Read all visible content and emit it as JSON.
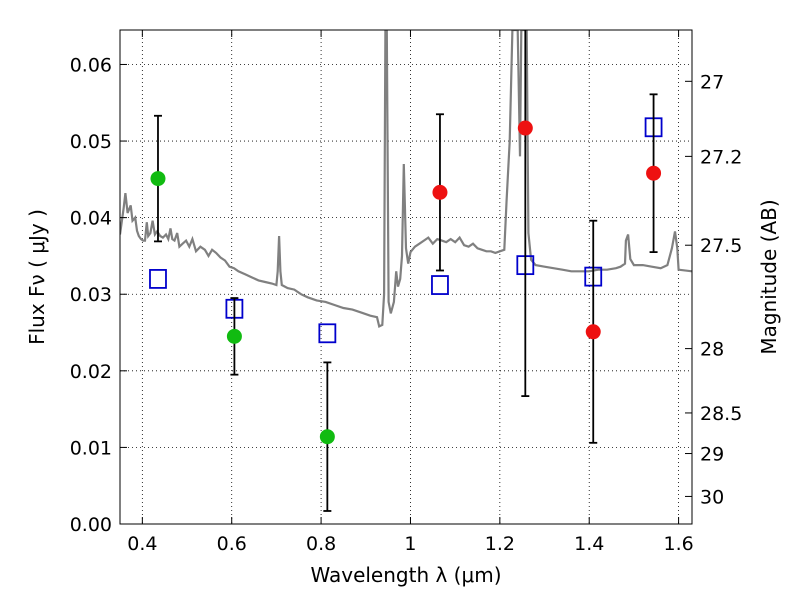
{
  "chart_data": {
    "type": "scatter",
    "xlabel": "Wavelength  λ (μm)",
    "ylabel": "Flux  Fν  ( μJy )",
    "ylabel_right": "Magnitude (AB)",
    "xlim": [
      0.35,
      1.63
    ],
    "ylim": [
      0.0,
      0.0645
    ],
    "grid": true,
    "x_ticks": [
      0.4,
      0.6,
      0.8,
      1.0,
      1.2,
      1.4,
      1.6
    ],
    "x_tick_labels": [
      "0.4",
      "0.6",
      "0.8",
      "1",
      "1.2",
      "1.4",
      "1.6"
    ],
    "y_ticks": [
      0.0,
      0.01,
      0.02,
      0.03,
      0.04,
      0.05,
      0.06
    ],
    "y_tick_labels": [
      "0.00",
      "0.01",
      "0.02",
      "0.03",
      "0.04",
      "0.05",
      "0.06"
    ],
    "right_ticks": [
      {
        "label": "27",
        "flux": 0.0578
      },
      {
        "label": "27.2",
        "flux": 0.048
      },
      {
        "label": "27.5",
        "flux": 0.0364
      },
      {
        "label": "28",
        "flux": 0.0229
      },
      {
        "label": "28.5",
        "flux": 0.0145
      },
      {
        "label": "29",
        "flux": 0.0092
      },
      {
        "label": "30",
        "flux": 0.0036
      }
    ],
    "colors": {
      "green": "#11bb11",
      "red": "#ee1111",
      "model_squares": "#0000cc",
      "spectrum": "#808080",
      "errorbar": "#000000"
    },
    "series": [
      {
        "marker": "circle",
        "color": "green",
        "points": [
          {
            "x": 0.435,
            "y": 0.0451,
            "err": 0.0082
          },
          {
            "x": 0.606,
            "y": 0.0245,
            "err": 0.005
          },
          {
            "x": 0.814,
            "y": 0.0114,
            "err": 0.0097
          }
        ]
      },
      {
        "marker": "circle",
        "color": "red",
        "points": [
          {
            "x": 1.066,
            "y": 0.0433,
            "err": 0.0102
          },
          {
            "x": 1.257,
            "y": 0.0517,
            "err": 0.035
          },
          {
            "x": 1.409,
            "y": 0.0251,
            "err": 0.0145
          },
          {
            "x": 1.544,
            "y": 0.0458,
            "err": 0.0103
          }
        ]
      },
      {
        "marker": "open-square",
        "color": "model_squares",
        "points": [
          {
            "x": 0.435,
            "y": 0.032
          },
          {
            "x": 0.606,
            "y": 0.0281
          },
          {
            "x": 0.814,
            "y": 0.0249
          },
          {
            "x": 1.066,
            "y": 0.0312
          },
          {
            "x": 1.257,
            "y": 0.0338
          },
          {
            "x": 1.409,
            "y": 0.0323
          },
          {
            "x": 1.544,
            "y": 0.0518
          }
        ]
      }
    ],
    "spectrum": [
      [
        0.35,
        0.0378
      ],
      [
        0.358,
        0.0412
      ],
      [
        0.362,
        0.0432
      ],
      [
        0.367,
        0.0406
      ],
      [
        0.374,
        0.0416
      ],
      [
        0.378,
        0.0396
      ],
      [
        0.384,
        0.04
      ],
      [
        0.388,
        0.0383
      ],
      [
        0.392,
        0.0376
      ],
      [
        0.397,
        0.0372
      ],
      [
        0.402,
        0.037
      ],
      [
        0.406,
        0.037
      ],
      [
        0.41,
        0.0394
      ],
      [
        0.413,
        0.0376
      ],
      [
        0.418,
        0.038
      ],
      [
        0.423,
        0.0396
      ],
      [
        0.428,
        0.0378
      ],
      [
        0.433,
        0.0382
      ],
      [
        0.44,
        0.0376
      ],
      [
        0.446,
        0.0374
      ],
      [
        0.453,
        0.0378
      ],
      [
        0.458,
        0.0372
      ],
      [
        0.463,
        0.0386
      ],
      [
        0.467,
        0.0372
      ],
      [
        0.472,
        0.037
      ],
      [
        0.478,
        0.038
      ],
      [
        0.483,
        0.0362
      ],
      [
        0.49,
        0.0366
      ],
      [
        0.498,
        0.037
      ],
      [
        0.505,
        0.0362
      ],
      [
        0.512,
        0.0372
      ],
      [
        0.52,
        0.0356
      ],
      [
        0.53,
        0.0362
      ],
      [
        0.54,
        0.0358
      ],
      [
        0.548,
        0.035
      ],
      [
        0.556,
        0.0358
      ],
      [
        0.565,
        0.0354
      ],
      [
        0.575,
        0.0348
      ],
      [
        0.585,
        0.0344
      ],
      [
        0.595,
        0.0336
      ],
      [
        0.605,
        0.0334
      ],
      [
        0.615,
        0.033
      ],
      [
        0.63,
        0.0326
      ],
      [
        0.645,
        0.0322
      ],
      [
        0.66,
        0.0318
      ],
      [
        0.675,
        0.0316
      ],
      [
        0.69,
        0.0314
      ],
      [
        0.7,
        0.0312
      ],
      [
        0.703,
        0.033
      ],
      [
        0.706,
        0.0376
      ],
      [
        0.709,
        0.033
      ],
      [
        0.712,
        0.0312
      ],
      [
        0.725,
        0.0308
      ],
      [
        0.74,
        0.0306
      ],
      [
        0.755,
        0.03
      ],
      [
        0.77,
        0.0296
      ],
      [
        0.79,
        0.0292
      ],
      [
        0.81,
        0.029
      ],
      [
        0.83,
        0.0286
      ],
      [
        0.85,
        0.0282
      ],
      [
        0.87,
        0.028
      ],
      [
        0.89,
        0.0276
      ],
      [
        0.91,
        0.0272
      ],
      [
        0.925,
        0.027
      ],
      [
        0.93,
        0.0258
      ],
      [
        0.937,
        0.026
      ],
      [
        0.941,
        0.03
      ],
      [
        0.944,
        0.0645
      ],
      [
        0.947,
        0.0645
      ],
      [
        0.951,
        0.029
      ],
      [
        0.956,
        0.0275
      ],
      [
        0.963,
        0.029
      ],
      [
        0.968,
        0.033
      ],
      [
        0.972,
        0.031
      ],
      [
        0.977,
        0.032
      ],
      [
        0.981,
        0.035
      ],
      [
        0.985,
        0.047
      ],
      [
        0.99,
        0.036
      ],
      [
        0.995,
        0.034
      ],
      [
        1.0,
        0.0355
      ],
      [
        1.01,
        0.0362
      ],
      [
        1.02,
        0.0366
      ],
      [
        1.03,
        0.037
      ],
      [
        1.04,
        0.0374
      ],
      [
        1.05,
        0.0366
      ],
      [
        1.06,
        0.0372
      ],
      [
        1.07,
        0.037
      ],
      [
        1.08,
        0.0368
      ],
      [
        1.09,
        0.0372
      ],
      [
        1.1,
        0.0368
      ],
      [
        1.11,
        0.0374
      ],
      [
        1.12,
        0.0364
      ],
      [
        1.13,
        0.0362
      ],
      [
        1.14,
        0.0366
      ],
      [
        1.15,
        0.036
      ],
      [
        1.16,
        0.0358
      ],
      [
        1.17,
        0.0356
      ],
      [
        1.18,
        0.0356
      ],
      [
        1.19,
        0.0354
      ],
      [
        1.2,
        0.0356
      ],
      [
        1.21,
        0.0358
      ],
      [
        1.215,
        0.042
      ],
      [
        1.222,
        0.05
      ],
      [
        1.228,
        0.0645
      ],
      [
        1.24,
        0.0645
      ],
      [
        1.245,
        0.048
      ],
      [
        1.248,
        0.0645
      ],
      [
        1.26,
        0.0645
      ],
      [
        1.264,
        0.038
      ],
      [
        1.27,
        0.0345
      ],
      [
        1.28,
        0.0338
      ],
      [
        1.3,
        0.0336
      ],
      [
        1.32,
        0.0334
      ],
      [
        1.34,
        0.0332
      ],
      [
        1.36,
        0.033
      ],
      [
        1.38,
        0.033
      ],
      [
        1.4,
        0.033
      ],
      [
        1.42,
        0.0332
      ],
      [
        1.44,
        0.0332
      ],
      [
        1.46,
        0.0334
      ],
      [
        1.47,
        0.0336
      ],
      [
        1.48,
        0.034
      ],
      [
        1.482,
        0.037
      ],
      [
        1.487,
        0.0378
      ],
      [
        1.492,
        0.0346
      ],
      [
        1.5,
        0.0338
      ],
      [
        1.52,
        0.0338
      ],
      [
        1.54,
        0.0336
      ],
      [
        1.56,
        0.0334
      ],
      [
        1.575,
        0.0338
      ],
      [
        1.585,
        0.036
      ],
      [
        1.592,
        0.0382
      ],
      [
        1.597,
        0.036
      ],
      [
        1.6,
        0.0332
      ],
      [
        1.63,
        0.033
      ]
    ]
  }
}
